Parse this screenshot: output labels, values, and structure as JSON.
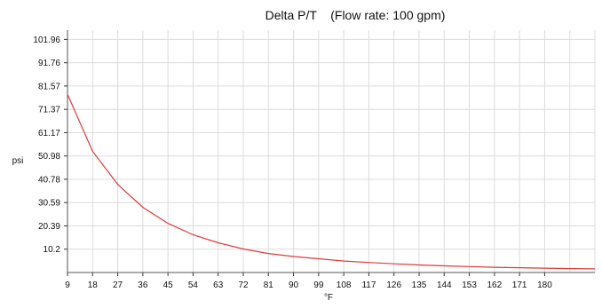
{
  "chart_data": {
    "type": "line",
    "title": "Delta P/T    (Flow rate: 100 gpm)",
    "xlabel": "°F",
    "ylabel": "psi",
    "x_ticks": [
      "9",
      "18",
      "27",
      "36",
      "45",
      "54",
      "63",
      "72",
      "81",
      "90",
      "99",
      "108",
      "117",
      "126",
      "135",
      "144",
      "153",
      "162",
      "171",
      "180"
    ],
    "y_ticks": [
      "10.2",
      "20.39",
      "30.59",
      "40.78",
      "50.98",
      "61.17",
      "71.37",
      "81.57",
      "91.76",
      "101.96"
    ],
    "xlim": [
      9,
      198
    ],
    "ylim": [
      0,
      106
    ],
    "grid": true,
    "series": [
      {
        "color": "#e03a3a",
        "x": [
          9,
          18,
          27,
          36,
          45,
          54,
          63,
          72,
          81,
          90,
          99,
          108,
          117,
          126,
          135,
          144,
          153,
          162,
          171,
          180,
          189,
          198
        ],
        "y": [
          78.0,
          53.0,
          38.5,
          28.5,
          21.5,
          16.5,
          13.0,
          10.3,
          8.3,
          7.0,
          6.0,
          5.0,
          4.4,
          3.8,
          3.3,
          2.9,
          2.6,
          2.3,
          2.1,
          1.9,
          1.7,
          1.6
        ]
      }
    ]
  }
}
